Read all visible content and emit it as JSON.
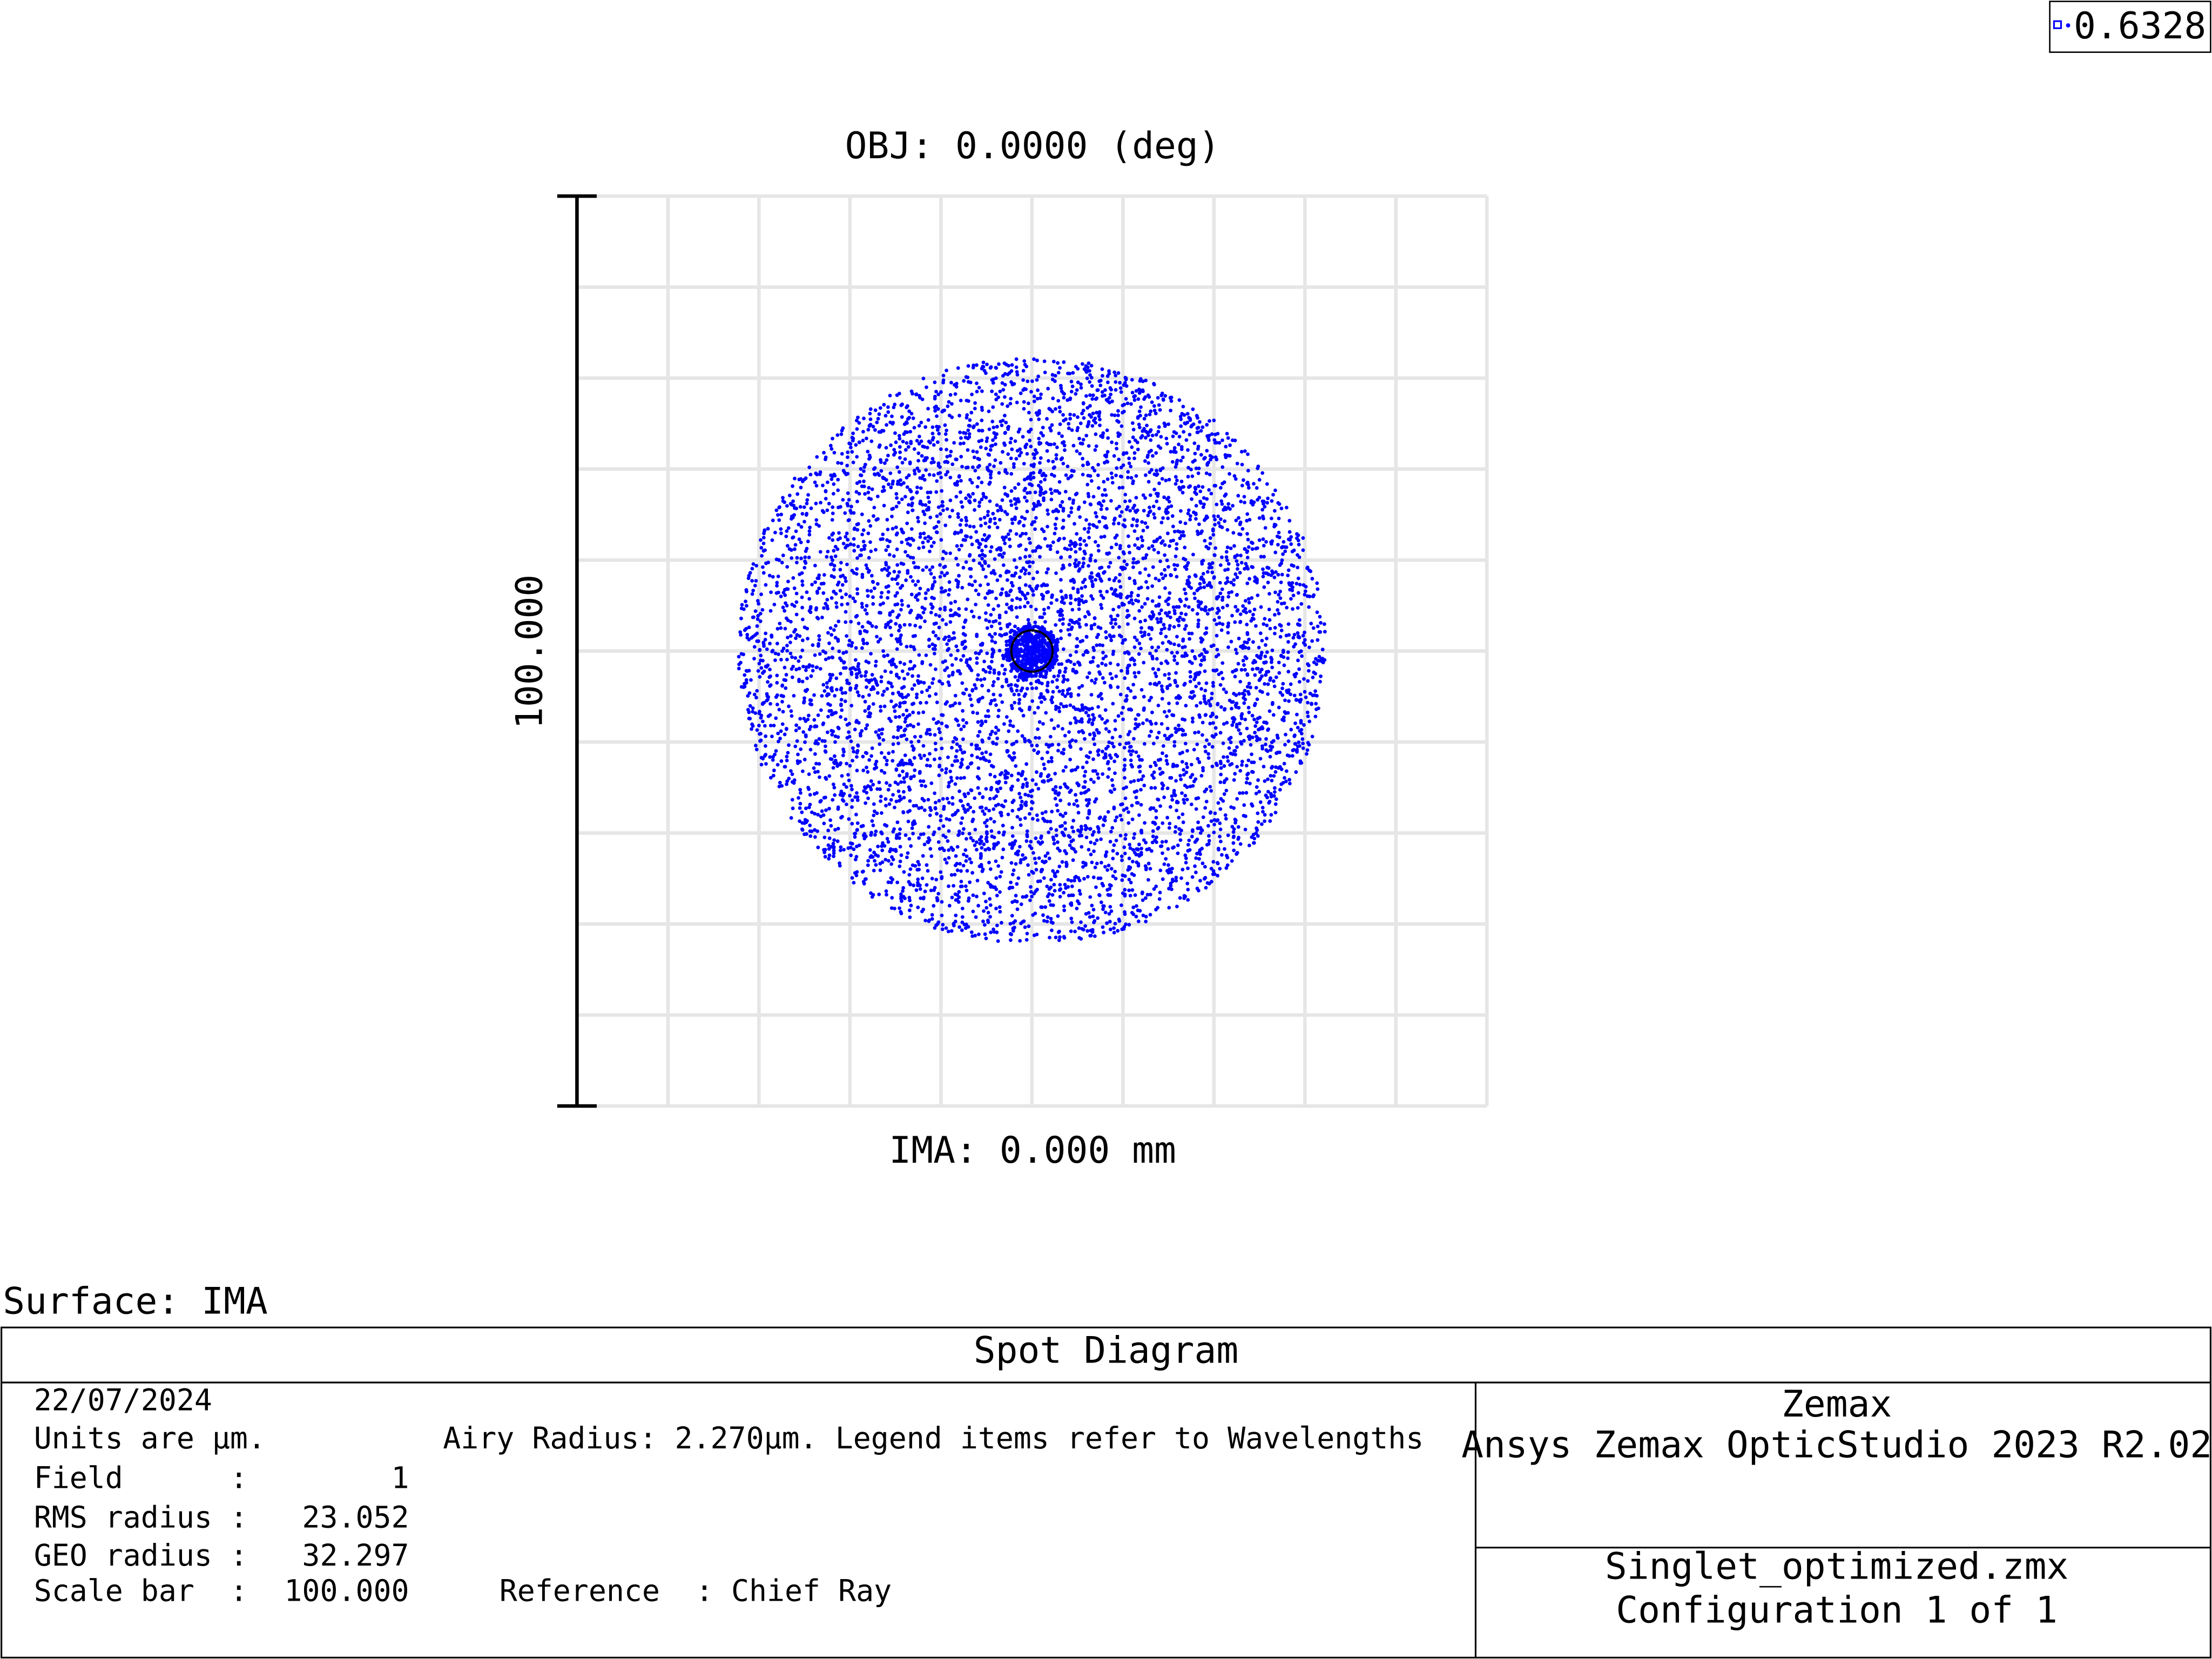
{
  "legend": {
    "wavelength": "0.6328"
  },
  "plot": {
    "title": "OBJ: 0.0000 (deg)",
    "scale_label": "100.000",
    "footer": "IMA: 0.000 mm"
  },
  "surface": "Surface: IMA",
  "info": {
    "title": "Spot Diagram",
    "date": "22/07/2024",
    "units": "Units are µm.",
    "airy_label": "Airy Radius:",
    "airy_value": "2.270µm.",
    "airy_note": "Legend items refer to Wavelengths",
    "rows": [
      [
        "Field",
        ":",
        "1"
      ],
      [
        "RMS radius",
        ":",
        "23.052"
      ],
      [
        "GEO radius",
        ":",
        "32.297"
      ],
      [
        "Scale bar",
        ":",
        "100.000"
      ]
    ],
    "reference": "Reference  : Chief Ray",
    "company": "Zemax",
    "product": "Ansys Zemax OpticStudio 2023 R2.02",
    "file": "Singlet_optimized.zmx",
    "config": "Configuration 1 of 1"
  }
}
